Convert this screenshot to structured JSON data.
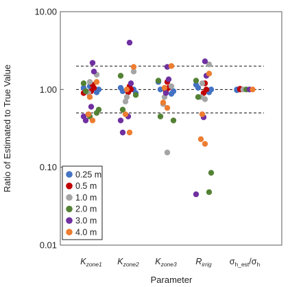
{
  "chart_data": {
    "type": "scatter",
    "xlabel": "Parameter",
    "ylabel": "Ratio of Estimated to True Value",
    "yscale": "log",
    "ylim": [
      0.01,
      10
    ],
    "yticks": [
      "0.01",
      "0.10",
      "1.00",
      "10.00"
    ],
    "reference_lines": [
      0.5,
      1.0,
      2.0
    ],
    "legend_position": "bottom-left",
    "categories": [
      {
        "main": "K",
        "sub": "zone1",
        "italic": true
      },
      {
        "main": "K",
        "sub": "zone2",
        "italic": true
      },
      {
        "main": "K",
        "sub": "zone3",
        "italic": true
      },
      {
        "main": "R",
        "sub": "irrig",
        "italic": true
      },
      {
        "parts": [
          {
            "t": "σ",
            "sub": false
          },
          {
            "t": "h_est",
            "sub": true
          },
          {
            "t": "/σ",
            "sub": false
          },
          {
            "t": "h",
            "sub": true
          }
        ],
        "italic": false
      }
    ],
    "series": [
      {
        "name": "0.25 m",
        "color": "#4472C4",
        "points": [
          {
            "x": 0,
            "y": 1.05
          },
          {
            "x": 0,
            "y": 0.95
          },
          {
            "x": 0,
            "y": 1.0
          },
          {
            "x": 0,
            "y": 0.92
          },
          {
            "x": 0,
            "y": 1.1
          },
          {
            "x": 1,
            "y": 1.05
          },
          {
            "x": 1,
            "y": 0.95
          },
          {
            "x": 1,
            "y": 0.9
          },
          {
            "x": 1,
            "y": 1.0
          },
          {
            "x": 2,
            "y": 1.25
          },
          {
            "x": 2,
            "y": 1.0
          },
          {
            "x": 2,
            "y": 0.95
          },
          {
            "x": 2,
            "y": 0.88
          },
          {
            "x": 3,
            "y": 1.15
          },
          {
            "x": 3,
            "y": 1.05
          },
          {
            "x": 3,
            "y": 1.0
          },
          {
            "x": 3,
            "y": 0.92
          },
          {
            "x": 4,
            "y": 1.0
          },
          {
            "x": 4,
            "y": 0.98
          }
        ]
      },
      {
        "name": "0.5 m",
        "color": "#C00000",
        "points": [
          {
            "x": 0,
            "y": 1.15
          },
          {
            "x": 0,
            "y": 1.05
          },
          {
            "x": 0,
            "y": 0.95
          },
          {
            "x": 0,
            "y": 0.9
          },
          {
            "x": 1,
            "y": 1.1
          },
          {
            "x": 1,
            "y": 1.0
          },
          {
            "x": 1,
            "y": 0.92
          },
          {
            "x": 2,
            "y": 1.25
          },
          {
            "x": 2,
            "y": 1.05
          },
          {
            "x": 2,
            "y": 0.95
          },
          {
            "x": 3,
            "y": 1.2
          },
          {
            "x": 3,
            "y": 1.0
          },
          {
            "x": 3,
            "y": 0.9
          },
          {
            "x": 4,
            "y": 1.0
          },
          {
            "x": 4,
            "y": 1.02
          }
        ]
      },
      {
        "name": "1.0 m",
        "color": "#A5A5A5",
        "points": [
          {
            "x": 0,
            "y": 1.55
          },
          {
            "x": 0,
            "y": 1.25
          },
          {
            "x": 0,
            "y": 0.9
          },
          {
            "x": 1,
            "y": 1.7
          },
          {
            "x": 1,
            "y": 0.8
          },
          {
            "x": 1,
            "y": 0.7
          },
          {
            "x": 2,
            "y": 1.1
          },
          {
            "x": 2,
            "y": 0.8
          },
          {
            "x": 2,
            "y": 0.65
          },
          {
            "x": 2,
            "y": 0.155
          },
          {
            "x": 3,
            "y": 2.1
          },
          {
            "x": 3,
            "y": 1.2
          },
          {
            "x": 3,
            "y": 0.8
          },
          {
            "x": 3,
            "y": 0.75
          },
          {
            "x": 4,
            "y": 1.0
          }
        ]
      },
      {
        "name": "2.0 m",
        "color": "#548235",
        "points": [
          {
            "x": 0,
            "y": 1.2
          },
          {
            "x": 0,
            "y": 0.95
          },
          {
            "x": 0,
            "y": 0.55
          },
          {
            "x": 0,
            "y": 0.5
          },
          {
            "x": 0,
            "y": 0.45
          },
          {
            "x": 1,
            "y": 1.5
          },
          {
            "x": 1,
            "y": 0.55
          },
          {
            "x": 1,
            "y": 0.85
          },
          {
            "x": 2,
            "y": 1.3
          },
          {
            "x": 2,
            "y": 0.45
          },
          {
            "x": 2,
            "y": 0.4
          },
          {
            "x": 3,
            "y": 1.3
          },
          {
            "x": 3,
            "y": 0.8
          },
          {
            "x": 3,
            "y": 0.085
          },
          {
            "x": 3,
            "y": 0.048
          },
          {
            "x": 4,
            "y": 1.0
          }
        ]
      },
      {
        "name": "3.0 m",
        "color": "#7030A0",
        "points": [
          {
            "x": 0,
            "y": 2.2
          },
          {
            "x": 0,
            "y": 1.7
          },
          {
            "x": 0,
            "y": 0.6
          },
          {
            "x": 0,
            "y": 0.45
          },
          {
            "x": 0,
            "y": 0.4
          },
          {
            "x": 1,
            "y": 4.0
          },
          {
            "x": 1,
            "y": 1.2
          },
          {
            "x": 1,
            "y": 0.45
          },
          {
            "x": 1,
            "y": 0.4
          },
          {
            "x": 1,
            "y": 0.28
          },
          {
            "x": 2,
            "y": 1.95
          },
          {
            "x": 2,
            "y": 1.35
          },
          {
            "x": 2,
            "y": 0.9
          },
          {
            "x": 3,
            "y": 2.3
          },
          {
            "x": 3,
            "y": 1.5
          },
          {
            "x": 3,
            "y": 0.44
          },
          {
            "x": 3,
            "y": 0.045
          },
          {
            "x": 4,
            "y": 1.0
          }
        ]
      },
      {
        "name": "4.0 m",
        "color": "#ED7D31",
        "points": [
          {
            "x": 0,
            "y": 1.25
          },
          {
            "x": 0,
            "y": 0.8
          },
          {
            "x": 0,
            "y": 0.48
          },
          {
            "x": 0,
            "y": 0.4
          },
          {
            "x": 1,
            "y": 1.95
          },
          {
            "x": 1,
            "y": 1.0
          },
          {
            "x": 1,
            "y": 0.48
          },
          {
            "x": 1,
            "y": 0.28
          },
          {
            "x": 2,
            "y": 2.0
          },
          {
            "x": 2,
            "y": 1.05
          },
          {
            "x": 2,
            "y": 0.68
          },
          {
            "x": 2,
            "y": 0.58
          },
          {
            "x": 3,
            "y": 1.6
          },
          {
            "x": 3,
            "y": 0.48
          },
          {
            "x": 3,
            "y": 0.23
          },
          {
            "x": 3,
            "y": 0.2
          },
          {
            "x": 4,
            "y": 1.0
          }
        ]
      }
    ]
  }
}
